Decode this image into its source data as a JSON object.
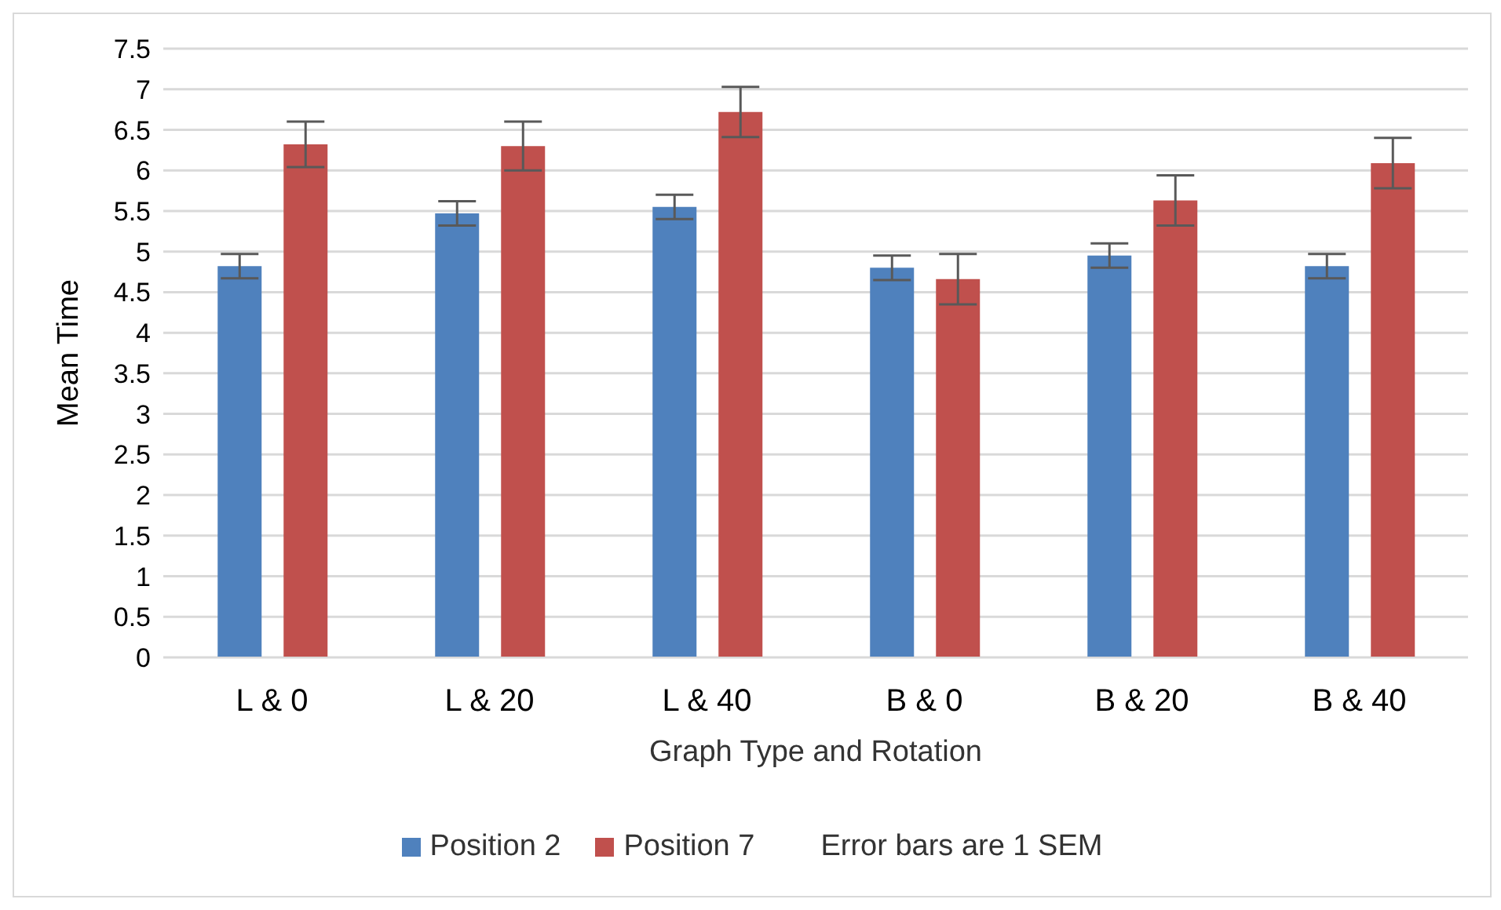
{
  "chart_data": {
    "type": "bar",
    "xlabel": "Graph Type and Rotation",
    "ylabel": "Mean Time",
    "categories": [
      "L & 0",
      "L & 20",
      "L & 40",
      "B & 0",
      "B & 20",
      "B & 40"
    ],
    "series": [
      {
        "name": "Position 2",
        "color": "#4f81bd",
        "values": [
          4.82,
          5.47,
          5.55,
          4.8,
          4.95,
          4.82
        ],
        "errors": [
          0.15,
          0.15,
          0.15,
          0.15,
          0.15,
          0.15
        ]
      },
      {
        "name": "Position 7",
        "color": "#c0504d",
        "values": [
          6.32,
          6.3,
          6.72,
          4.66,
          5.63,
          6.09
        ],
        "errors": [
          0.28,
          0.3,
          0.31,
          0.31,
          0.31,
          0.31
        ]
      }
    ],
    "ylim": [
      0,
      7.5
    ],
    "yticks": [
      0,
      0.5,
      1,
      1.5,
      2,
      2.5,
      3,
      3.5,
      4,
      4.5,
      5,
      5.5,
      6,
      6.5,
      7,
      7.5
    ],
    "grid": "y",
    "legend": "bottom",
    "annotations": [
      "Error bars are 1 SEM"
    ]
  }
}
